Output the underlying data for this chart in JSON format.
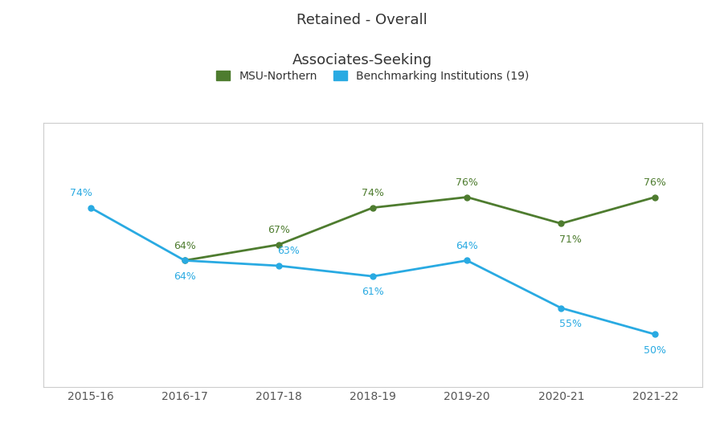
{
  "title_line1": "Retained - Overall",
  "title_line2": "Associates-Seeking",
  "x_labels": [
    "2015-16",
    "2016-17",
    "2017-18",
    "2018-19",
    "2019-20",
    "2020-21",
    "2021-22"
  ],
  "msu_values": [
    null,
    64,
    67,
    74,
    76,
    71,
    76
  ],
  "bench_values": [
    74,
    64,
    63,
    61,
    64,
    55,
    50
  ],
  "msu_color": "#4e7c2f",
  "bench_color": "#29aae2",
  "msu_label": "MSU-Northern",
  "bench_label": "Benchmarking Institutions (19)",
  "annotation_fontsize": 9,
  "title_fontsize": 13,
  "legend_fontsize": 10,
  "bg_color": "#ffffff",
  "plot_bg_color": "#ffffff",
  "spine_color": "#cccccc",
  "ylim_min": 40,
  "ylim_max": 90
}
